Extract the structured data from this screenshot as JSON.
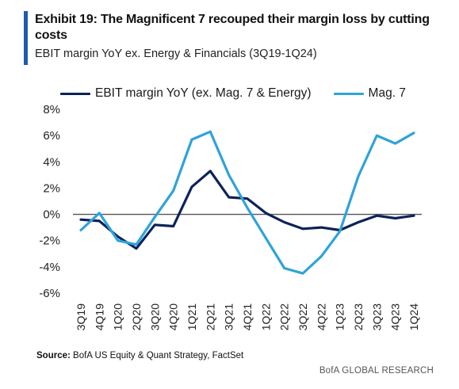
{
  "header": {
    "title": "Exhibit 19: The Magnificent 7 recouped their margin loss by cutting costs",
    "subtitle": "EBIT margin YoY ex. Energy & Financials (3Q19-1Q24)"
  },
  "footer": {
    "source_label": "Source:",
    "source_text": " BofA US Equity & Quant Strategy, FactSet",
    "brand": "BofA GLOBAL RESEARCH"
  },
  "colors": {
    "accent": "#1d5cac",
    "series_dark": "#0d2259",
    "series_light": "#30a3d9",
    "axis": "#555555"
  },
  "chart_data": {
    "type": "line",
    "categories": [
      "3Q19",
      "4Q19",
      "1Q20",
      "2Q20",
      "3Q20",
      "4Q20",
      "1Q21",
      "2Q21",
      "3Q21",
      "4Q21",
      "1Q22",
      "2Q22",
      "3Q22",
      "4Q22",
      "1Q23",
      "2Q23",
      "3Q23",
      "4Q23",
      "1Q24"
    ],
    "ylim": [
      -6,
      8
    ],
    "yticks": [
      "-6%",
      "-4%",
      "-2%",
      "0%",
      "2%",
      "4%",
      "6%",
      "8%"
    ],
    "ytick_values": [
      -6,
      -4,
      -2,
      0,
      2,
      4,
      6,
      8
    ],
    "legend_position": "top",
    "grid": false,
    "series": [
      {
        "name": "EBIT margin YoY (ex. Mag. 7 & Energy)",
        "color": "#0d2259",
        "values": [
          -0.4,
          -0.5,
          -1.7,
          -2.6,
          -0.8,
          -0.9,
          2.1,
          3.3,
          1.3,
          1.2,
          0.1,
          -0.6,
          -1.1,
          -1.0,
          -1.2,
          -0.6,
          -0.1,
          -0.3,
          -0.1
        ]
      },
      {
        "name": "Mag. 7",
        "color": "#30a3d9",
        "values": [
          -1.2,
          0.1,
          -2.0,
          -2.3,
          -0.2,
          1.8,
          5.7,
          6.3,
          3.0,
          0.5,
          -1.8,
          -4.1,
          -4.5,
          -3.2,
          -1.3,
          2.9,
          6.0,
          5.4,
          6.2
        ]
      }
    ]
  }
}
